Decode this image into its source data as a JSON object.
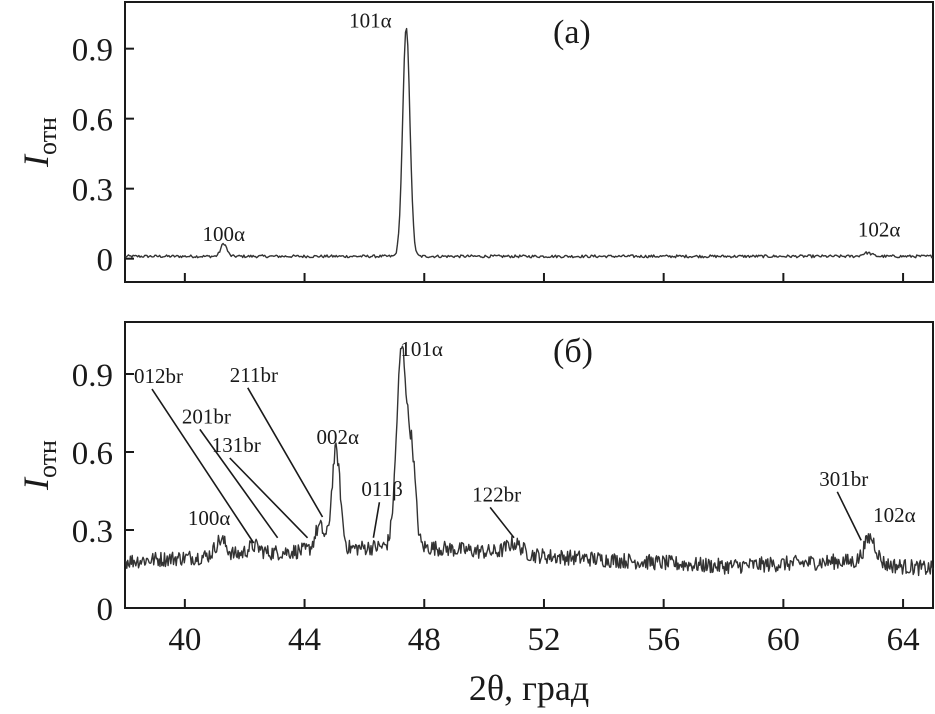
{
  "chart_data": [
    {
      "type": "line",
      "panel_label": "(a)",
      "xlabel": "",
      "ylabel": "I",
      "ylabel_sub": "отн",
      "xlim": [
        38,
        65
      ],
      "ylim": [
        -0.1,
        1.1
      ],
      "x_ticks": [
        40,
        44,
        48,
        52,
        56,
        60,
        64
      ],
      "x_tick_labels": [
        "",
        "",
        "",
        "",
        "",
        "",
        ""
      ],
      "y_ticks": [
        0,
        0.3,
        0.6,
        0.9
      ],
      "y_tick_labels": [
        "0",
        "0.3",
        "0.6",
        "0.9"
      ],
      "baseline": 0.01,
      "noise": 0.006,
      "peaks": [
        {
          "center": 41.3,
          "height": 0.055,
          "width": 0.1
        },
        {
          "center": 47.4,
          "height": 0.98,
          "width": 0.12
        },
        {
          "center": 62.8,
          "height": 0.015,
          "width": 0.15
        }
      ],
      "annotations": [
        {
          "text": "100α",
          "x": 41.3,
          "y": 0.075
        },
        {
          "text": "101α",
          "x": 46.2,
          "y": 0.99
        },
        {
          "text": "102α",
          "x": 63.2,
          "y": 0.095
        }
      ]
    },
    {
      "type": "line",
      "panel_label": "(б)",
      "xlabel": "2θ, град",
      "ylabel": "I",
      "ylabel_sub": "отн",
      "xlim": [
        38,
        65
      ],
      "ylim": [
        0,
        1.1
      ],
      "x_ticks": [
        40,
        44,
        48,
        52,
        56,
        60,
        64
      ],
      "x_tick_labels": [
        "40",
        "44",
        "48",
        "52",
        "56",
        "60",
        "64"
      ],
      "y_ticks": [
        0,
        0.3,
        0.6,
        0.9
      ],
      "y_tick_labels": [
        "0",
        "0.3",
        "0.6",
        "0.9"
      ],
      "baseline_points": [
        [
          38,
          0.18
        ],
        [
          44,
          0.22
        ],
        [
          47.3,
          0.24
        ],
        [
          52,
          0.2
        ],
        [
          58,
          0.16
        ],
        [
          62,
          0.18
        ],
        [
          65,
          0.15
        ]
      ],
      "noise": 0.03,
      "peaks": [
        {
          "center": 41.2,
          "height": 0.06,
          "width": 0.18
        },
        {
          "center": 42.3,
          "height": 0.03,
          "width": 0.2
        },
        {
          "center": 44.5,
          "height": 0.09,
          "width": 0.15
        },
        {
          "center": 45.05,
          "height": 0.38,
          "width": 0.14
        },
        {
          "center": 47.25,
          "height": 0.76,
          "width": 0.17
        },
        {
          "center": 47.6,
          "height": 0.3,
          "width": 0.12
        },
        {
          "center": 51.0,
          "height": 0.04,
          "width": 0.25
        },
        {
          "center": 62.9,
          "height": 0.1,
          "width": 0.2
        }
      ],
      "annotations": [
        {
          "text": "012br",
          "label_x": 38.3,
          "label_y": 0.865,
          "end_x": 42.3,
          "end_y": 0.25
        },
        {
          "text": "201br",
          "label_x": 39.9,
          "label_y": 0.71,
          "end_x": 43.1,
          "end_y": 0.27
        },
        {
          "text": "131br",
          "label_x": 40.9,
          "label_y": 0.6,
          "end_x": 44.1,
          "end_y": 0.27
        },
        {
          "text": "211br",
          "label_x": 41.5,
          "label_y": 0.87,
          "end_x": 44.6,
          "end_y": 0.35
        },
        {
          "text": "002α",
          "label_x": 44.4,
          "label_y": 0.63,
          "end_x": null,
          "end_y": null
        },
        {
          "text": "011β",
          "label_x": 45.9,
          "label_y": 0.43,
          "end_x": 46.3,
          "end_y": 0.27
        },
        {
          "text": "100α",
          "label_x": 40.1,
          "label_y": 0.32,
          "end_x": null,
          "end_y": null
        },
        {
          "text": "101α",
          "label_x": 47.2,
          "label_y": 0.97,
          "end_x": null,
          "end_y": null
        },
        {
          "text": "122br",
          "label_x": 49.6,
          "label_y": 0.41,
          "end_x": 51.0,
          "end_y": 0.27
        },
        {
          "text": "301br",
          "label_x": 61.2,
          "label_y": 0.47,
          "end_x": 62.6,
          "end_y": 0.26
        },
        {
          "text": "102α",
          "label_x": 63.0,
          "label_y": 0.33,
          "end_x": null,
          "end_y": null
        }
      ]
    }
  ]
}
